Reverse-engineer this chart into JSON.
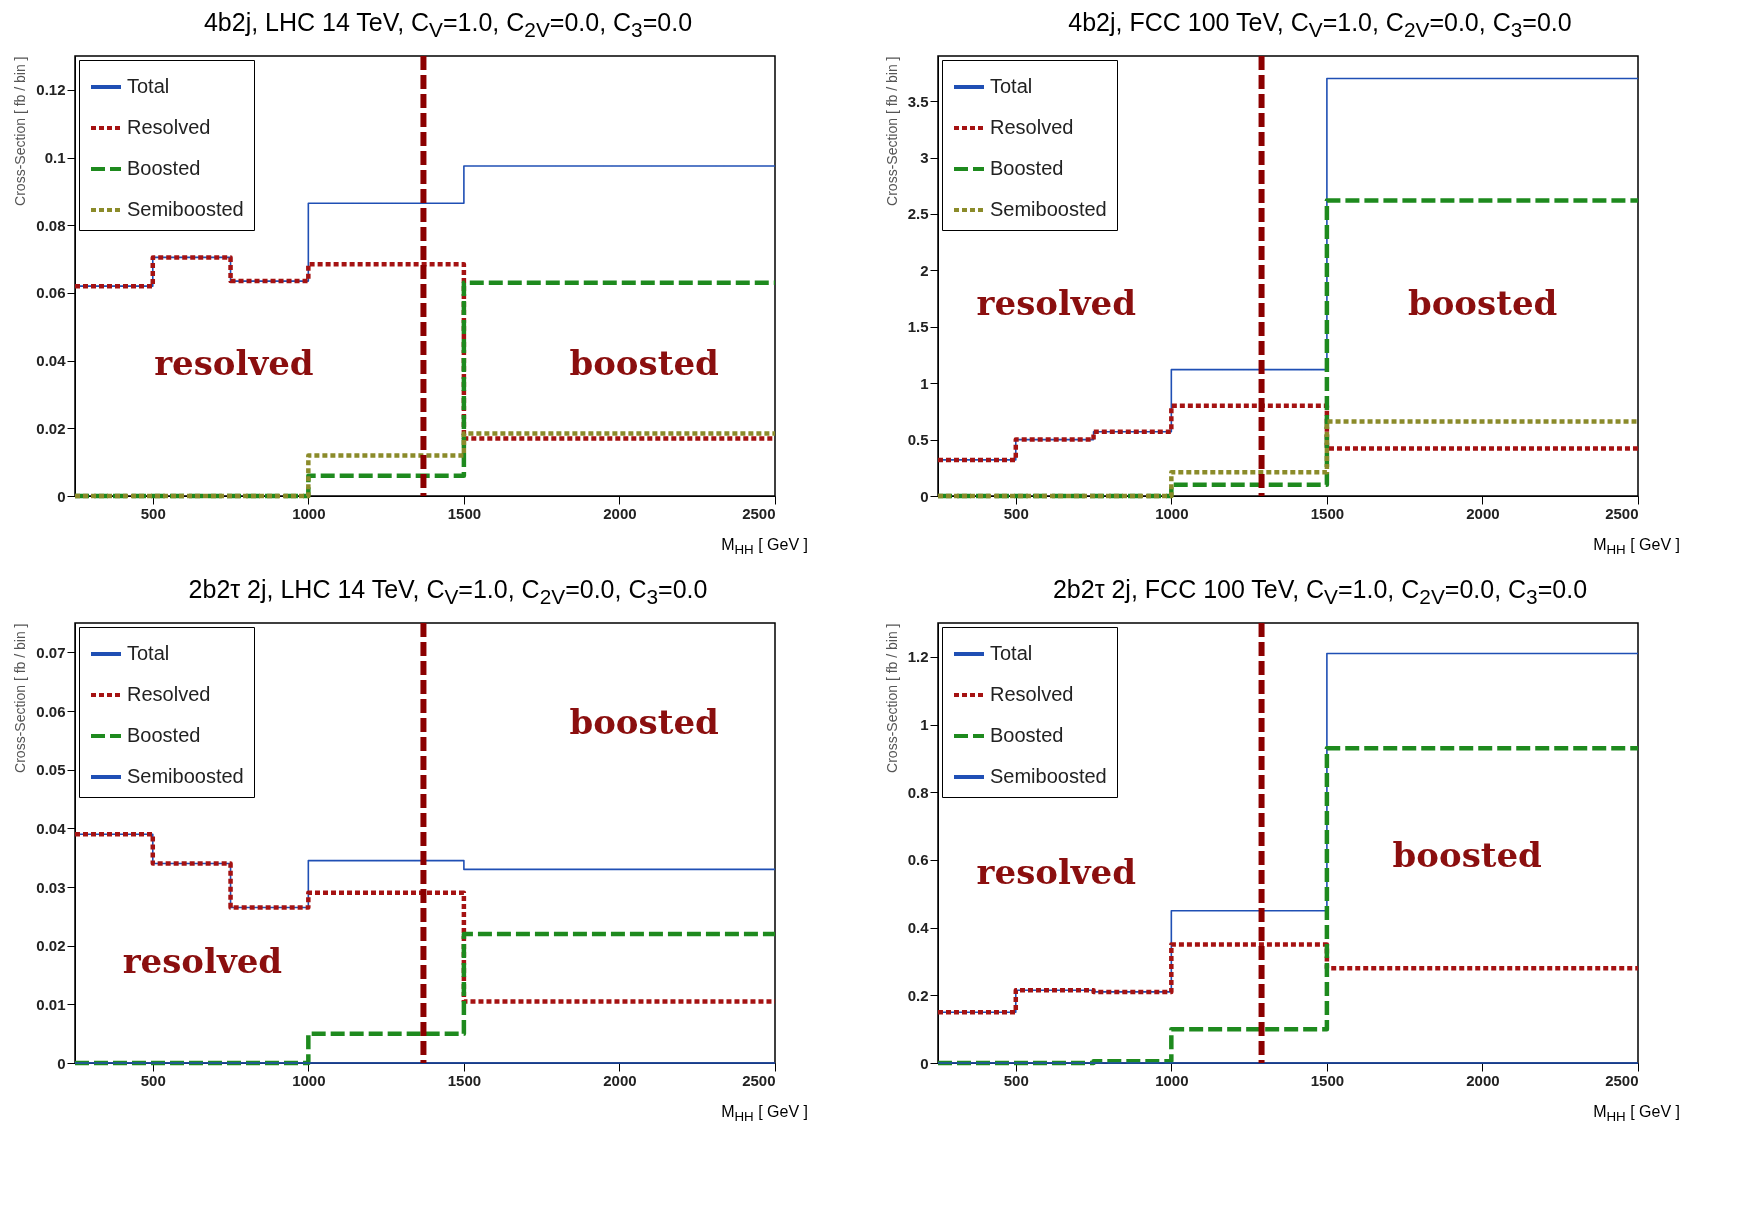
{
  "chart_data": [
    {
      "type": "histogram",
      "title": "4b2j, LHC 14 TeV, C$_{V}$=1.0, C$_{2V}$=0.0, C$_{3}$=0.0",
      "xlabel": "M$_{HH}$ [ GeV ]",
      "ylabel": "Cross-Section [ fb / bin ]",
      "bins": [
        250,
        500,
        750,
        1000,
        1500,
        2500
      ],
      "xlim": [
        250,
        2500
      ],
      "xticks": [
        500,
        1000,
        1500,
        2000,
        2500
      ],
      "ylim": [
        0,
        0.13
      ],
      "yticks": [
        0,
        0.02,
        0.04,
        0.06,
        0.08,
        0.1,
        0.12
      ],
      "legend": "top left",
      "series": [
        {
          "name": "Total",
          "color": "#1f4fb4",
          "line_style": "solid",
          "values": [
            0.062,
            0.0705,
            0.0635,
            0.0865,
            0.0975
          ]
        },
        {
          "name": "Resolved",
          "color": "#a51212",
          "line_style": "dotted",
          "values": [
            0.062,
            0.0705,
            0.0635,
            0.0685,
            0.017
          ]
        },
        {
          "name": "Boosted",
          "color": "#1e8a1e",
          "line_style": "dashed",
          "values": [
            0,
            0,
            0,
            0.006,
            0.063
          ]
        },
        {
          "name": "Semiboosted",
          "color": "#8b8b2a",
          "line_style": "dotted",
          "values": [
            0,
            0,
            0,
            0.012,
            0.0185
          ]
        }
      ],
      "ref_lines": [
        {
          "axis": "x",
          "value": 1370,
          "color": "#8b0000",
          "line_style": "dashed"
        }
      ],
      "annotations": [
        "resolved",
        "boosted"
      ]
    },
    {
      "type": "histogram",
      "title": "4b2j, FCC 100 TeV, C$_{V}$=1.0, C$_{2V}$=0.0, C$_{3}$=0.0",
      "xlabel": "M$_{HH}$ [ GeV ]",
      "ylabel": "Cross-Section [ fb / bin ]",
      "bins": [
        250,
        500,
        750,
        1000,
        1500,
        2500
      ],
      "xlim": [
        250,
        2500
      ],
      "xticks": [
        500,
        1000,
        1500,
        2000,
        2500
      ],
      "ylim": [
        0,
        3.9
      ],
      "yticks": [
        0,
        0.5,
        1,
        1.5,
        2,
        2.5,
        3,
        3.5
      ],
      "legend": "top left",
      "series": [
        {
          "name": "Total",
          "color": "#1f4fb4",
          "line_style": "solid",
          "values": [
            0.32,
            0.5,
            0.57,
            1.12,
            3.7
          ]
        },
        {
          "name": "Resolved",
          "color": "#a51212",
          "line_style": "dotted",
          "values": [
            0.32,
            0.5,
            0.57,
            0.8,
            0.42
          ]
        },
        {
          "name": "Boosted",
          "color": "#1e8a1e",
          "line_style": "dashed",
          "values": [
            0,
            0,
            0,
            0.1,
            2.62
          ]
        },
        {
          "name": "Semiboosted",
          "color": "#8b8b2a",
          "line_style": "dotted",
          "values": [
            0,
            0,
            0,
            0.21,
            0.66
          ]
        }
      ],
      "ref_lines": [
        {
          "axis": "x",
          "value": 1290,
          "color": "#8b0000",
          "line_style": "dashed"
        }
      ],
      "annotations": [
        "resolved",
        "boosted"
      ]
    },
    {
      "type": "histogram",
      "title": "2b2τ 2j, LHC 14 TeV, C$_{V}$=1.0, C$_{2V}$=0.0, C$_{3}$=0.0",
      "xlabel": "M$_{HH}$ [ GeV ]",
      "ylabel": "Cross-Section [ fb / bin ]",
      "bins": [
        250,
        500,
        750,
        1000,
        1500,
        2500
      ],
      "xlim": [
        250,
        2500
      ],
      "xticks": [
        500,
        1000,
        1500,
        2000,
        2500
      ],
      "ylim": [
        0,
        0.075
      ],
      "yticks": [
        0,
        0.01,
        0.02,
        0.03,
        0.04,
        0.05,
        0.06,
        0.07
      ],
      "legend": "top left",
      "series": [
        {
          "name": "Total",
          "color": "#1f4fb4",
          "line_style": "solid",
          "values": [
            0.039,
            0.034,
            0.0265,
            0.0345,
            0.033
          ]
        },
        {
          "name": "Resolved",
          "color": "#a51212",
          "line_style": "dotted",
          "values": [
            0.039,
            0.034,
            0.0265,
            0.029,
            0.0105
          ]
        },
        {
          "name": "Boosted",
          "color": "#1e8a1e",
          "line_style": "dashed",
          "values": [
            0,
            0,
            0,
            0.005,
            0.022
          ]
        },
        {
          "name": "Semiboosted",
          "color": "#1f4fb5",
          "line_style": "solid",
          "values": [
            0,
            0,
            0,
            0,
            0
          ]
        }
      ],
      "ref_lines": [
        {
          "axis": "x",
          "value": 1370,
          "color": "#8b0000",
          "line_style": "dashed"
        }
      ],
      "annotations": [
        "resolved",
        "boosted"
      ]
    },
    {
      "type": "histogram",
      "title": "2b2τ 2j, FCC 100 TeV, C$_{V}$=1.0, C$_{2V}$=0.0, C$_{3}$=0.0",
      "xlabel": "M$_{HH}$ [ GeV ]",
      "ylabel": "Cross-Section [ fb / bin ]",
      "bins": [
        250,
        500,
        750,
        1000,
        1500,
        2500
      ],
      "xlim": [
        250,
        2500
      ],
      "xticks": [
        500,
        1000,
        1500,
        2000,
        2500
      ],
      "ylim": [
        0,
        1.3
      ],
      "yticks": [
        0,
        0.2,
        0.4,
        0.6,
        0.8,
        1,
        1.2
      ],
      "legend": "top left",
      "series": [
        {
          "name": "Total",
          "color": "#1f4fb4",
          "line_style": "solid",
          "values": [
            0.15,
            0.215,
            0.21,
            0.45,
            1.21
          ]
        },
        {
          "name": "Resolved",
          "color": "#a51212",
          "line_style": "dotted",
          "values": [
            0.15,
            0.215,
            0.21,
            0.35,
            0.28
          ]
        },
        {
          "name": "Boosted",
          "color": "#1e8a1e",
          "line_style": "dashed",
          "values": [
            0,
            0,
            0.005,
            0.1,
            0.93
          ]
        },
        {
          "name": "Semiboosted",
          "color": "#1f4fb5",
          "line_style": "solid",
          "values": [
            0,
            0,
            0,
            0,
            0
          ]
        }
      ],
      "ref_lines": [
        {
          "axis": "x",
          "value": 1290,
          "color": "#8b0000",
          "line_style": "dashed"
        }
      ],
      "annotations": [
        "resolved",
        "boosted"
      ]
    }
  ]
}
